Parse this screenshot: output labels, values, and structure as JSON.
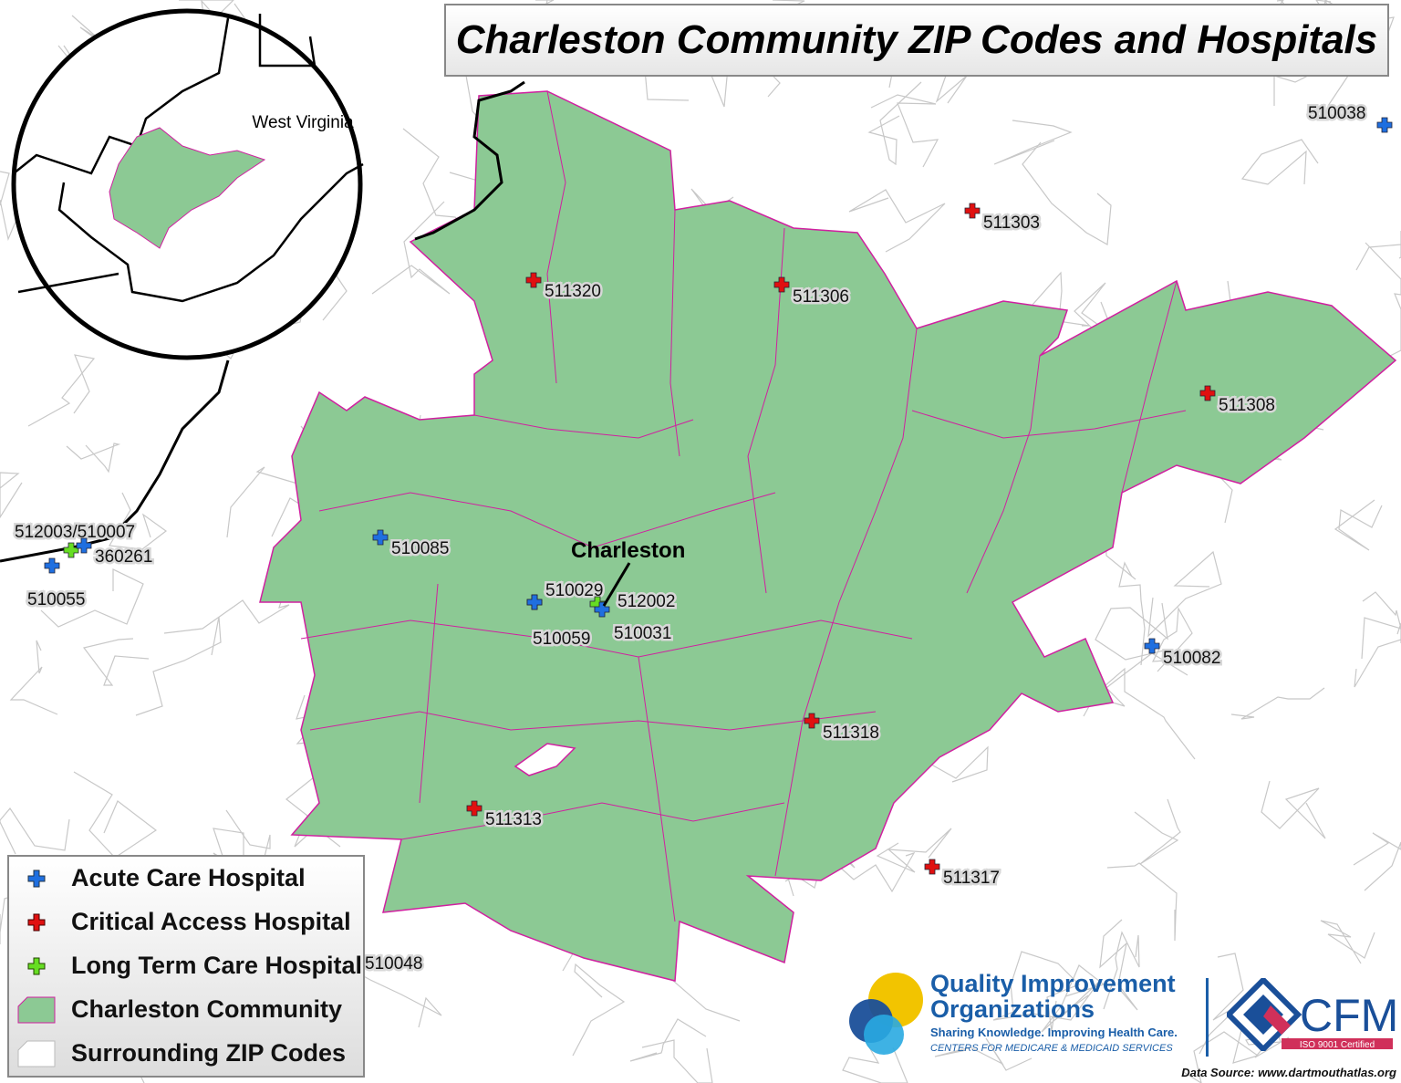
{
  "title": "Charleston Community ZIP Codes and Hospitals",
  "inset": {
    "state_label": "West Virginia"
  },
  "city_label": "Charleston",
  "colors": {
    "acute": "#1f6fe0",
    "critical": "#e01010",
    "long_term": "#66dd22",
    "community_fill": "#8cc994",
    "zip_border": "#d020a0",
    "surrounding_border": "#c8c8c8"
  },
  "hospitals": [
    {
      "id": "510038",
      "type": "acute"
    },
    {
      "id": "511303",
      "type": "critical"
    },
    {
      "id": "511320",
      "type": "critical"
    },
    {
      "id": "511306",
      "type": "critical"
    },
    {
      "id": "511308",
      "type": "critical"
    },
    {
      "id": "512003/510007",
      "type": "long_term"
    },
    {
      "id": "360261",
      "type": "acute"
    },
    {
      "id": "510055",
      "type": "acute"
    },
    {
      "id": "510085",
      "type": "acute"
    },
    {
      "id": "510029",
      "type": "acute"
    },
    {
      "id": "510059",
      "type": "acute"
    },
    {
      "id": "512002",
      "type": "long_term"
    },
    {
      "id": "510031",
      "type": "acute"
    },
    {
      "id": "510082",
      "type": "acute"
    },
    {
      "id": "511318",
      "type": "critical"
    },
    {
      "id": "511313",
      "type": "critical"
    },
    {
      "id": "511317",
      "type": "critical"
    },
    {
      "id": "510048",
      "type": "acute"
    }
  ],
  "legend": {
    "items": [
      {
        "label": "Acute Care Hospital",
        "symbol": "blue-cross-icon"
      },
      {
        "label": "Critical Access Hospital",
        "symbol": "red-cross-icon"
      },
      {
        "label": "Long Term Care Hospital",
        "symbol": "green-cross-icon"
      },
      {
        "label": "Charleston Community",
        "symbol": "green-polygon-icon"
      },
      {
        "label": "Surrounding ZIP Codes",
        "symbol": "white-polygon-icon"
      }
    ]
  },
  "logos": {
    "qio_line1": "Quality Improvement",
    "qio_line2": "Organizations",
    "qio_tagline": "Sharing Knowledge. Improving Health Care.",
    "qio_cms": "CENTERS FOR MEDICARE & MEDICAID SERVICES",
    "cfmc": "CFMC",
    "cfmc_cert": "ISO 9001 Certified"
  },
  "data_source": "Data Source: www.dartmouthatlas.org"
}
